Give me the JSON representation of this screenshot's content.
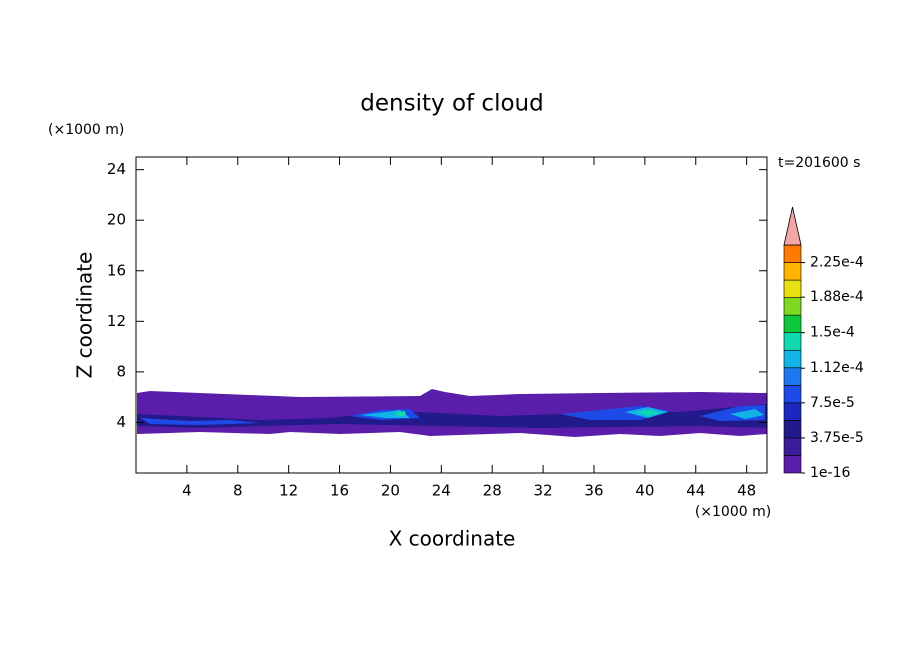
{
  "chart_data": {
    "type": "contour",
    "title": "density of cloud",
    "xlabel": "X coordinate",
    "ylabel": "Z coordinate",
    "x_unit": "(×1000 m)",
    "y_unit": "(×1000 m)",
    "time_label": "t=201600 s",
    "xlim": [
      0,
      49.6
    ],
    "ylim": [
      0,
      25
    ],
    "xticks": [
      4,
      8,
      12,
      16,
      20,
      24,
      28,
      32,
      36,
      40,
      44,
      48
    ],
    "yticks": [
      4,
      8,
      12,
      16,
      20,
      24
    ],
    "colorbar": {
      "clim": [
        1e-16,
        0.00024375
      ],
      "colors": [
        "#5a1eaa",
        "#3a1c9a",
        "#221a8a",
        "#1a28c0",
        "#1e4ae8",
        "#1e78f0",
        "#12b4e6",
        "#10d8b0",
        "#10c840",
        "#80d820",
        "#e8e010",
        "#ffb400",
        "#ff7a00"
      ],
      "overflow_color": "#f4a6a6",
      "ticks": [
        {
          "value": 1e-16,
          "label": "1e-16"
        },
        {
          "value": 3.75e-05,
          "label": "3.75e-5"
        },
        {
          "value": 7.5e-05,
          "label": "7.5e-5"
        },
        {
          "value": 0.000112,
          "label": "1.12e-4"
        },
        {
          "value": 0.00015,
          "label": "1.5e-4"
        },
        {
          "value": 0.000188,
          "label": "1.88e-4"
        },
        {
          "value": 0.000225,
          "label": "2.25e-4"
        }
      ]
    }
  }
}
